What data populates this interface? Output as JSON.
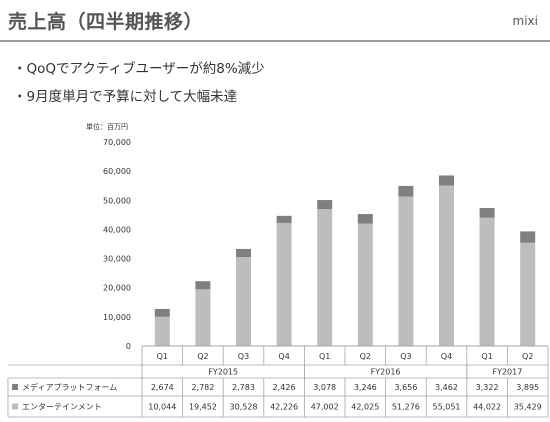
{
  "header": {
    "title": "売上高（四半期推移）",
    "brand": "mixi"
  },
  "bullets": [
    "QoQでアクティブユーザーが約8%減少",
    "9月度単月で予算に対して大幅未達"
  ],
  "chart_data": {
    "type": "bar",
    "stacked": true,
    "unit_label": "単位：百万円",
    "categories": [
      "Q1",
      "Q2",
      "Q3",
      "Q4",
      "Q1",
      "Q2",
      "Q3",
      "Q4",
      "Q1",
      "Q2"
    ],
    "fiscal_years": [
      {
        "label": "FY2015",
        "start": 0,
        "end": 3
      },
      {
        "label": "FY2016",
        "start": 4,
        "end": 7
      },
      {
        "label": "FY2017",
        "start": 8,
        "end": 9
      }
    ],
    "series": [
      {
        "name": "エンターテインメント",
        "color": "#bdbdbd",
        "values": [
          10044,
          19452,
          30528,
          42226,
          47002,
          42025,
          51276,
          55051,
          44022,
          35429
        ]
      },
      {
        "name": "メディアプラットフォーム",
        "color": "#7f7f7f",
        "values": [
          2674,
          2782,
          2783,
          2426,
          3078,
          3246,
          3656,
          3462,
          3322,
          3895
        ]
      }
    ],
    "table_rows": [
      {
        "marker_color": "#7f7f7f",
        "label": "メディアプラットフォーム",
        "cells": [
          "2,674",
          "2,782",
          "2,783",
          "2,426",
          "3,078",
          "3,246",
          "3,656",
          "3,462",
          "3,322",
          "3,895"
        ]
      },
      {
        "marker_color": "#bdbdbd",
        "label": "エンターテインメント",
        "cells": [
          "10,044",
          "19,452",
          "30,528",
          "42,226",
          "47,002",
          "42,025",
          "51,276",
          "55,051",
          "44,022",
          "35,429"
        ]
      }
    ],
    "ylim": [
      0,
      70000
    ],
    "yticks": [
      0,
      10000,
      20000,
      30000,
      40000,
      50000,
      60000,
      70000
    ],
    "ytick_labels": [
      "0",
      "10,000",
      "20,000",
      "30,000",
      "40,000",
      "50,000",
      "60,000",
      "70,000"
    ],
    "grid": false
  }
}
